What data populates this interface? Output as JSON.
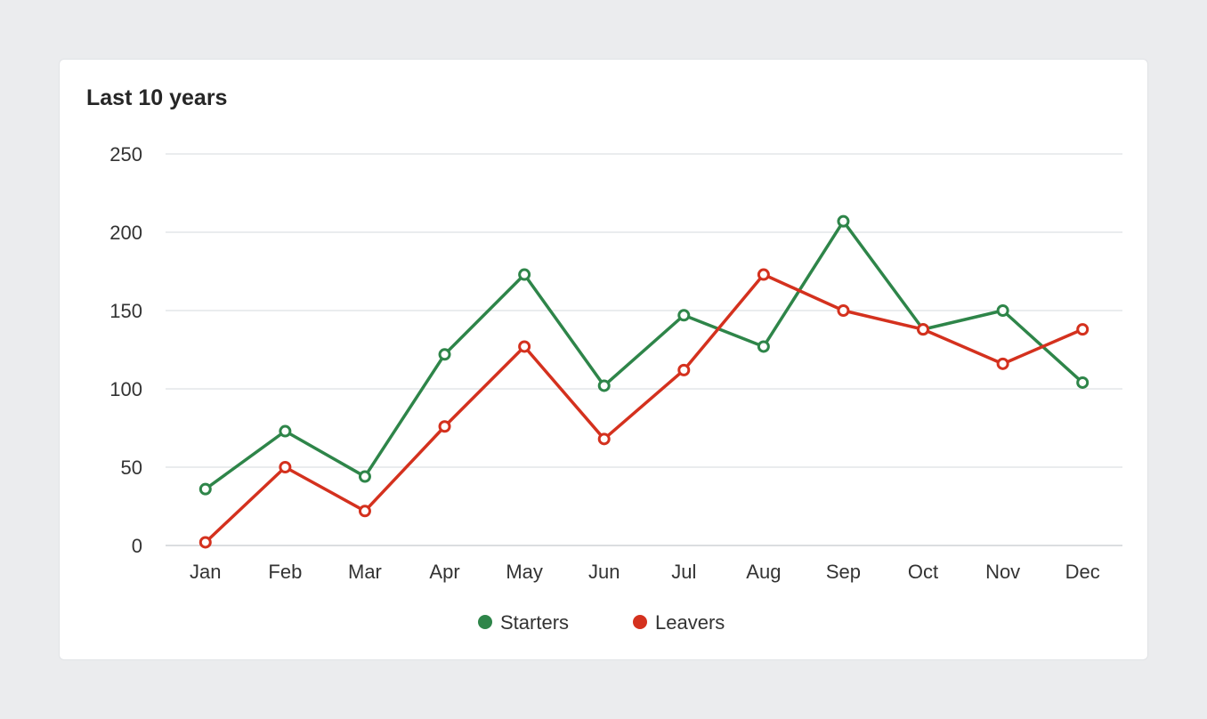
{
  "card": {
    "title": "Last 10 years"
  },
  "chart_data": {
    "type": "line",
    "title": "Last 10 years",
    "categories": [
      "Jan",
      "Feb",
      "Mar",
      "Apr",
      "May",
      "Jun",
      "Jul",
      "Aug",
      "Sep",
      "Oct",
      "Nov",
      "Dec"
    ],
    "series": [
      {
        "name": "Starters",
        "color": "#2e8549",
        "values": [
          36,
          73,
          44,
          122,
          173,
          102,
          147,
          127,
          207,
          138,
          150,
          104
        ]
      },
      {
        "name": "Leavers",
        "color": "#d4311e",
        "values": [
          2,
          50,
          22,
          76,
          127,
          68,
          112,
          173,
          150,
          138,
          116,
          138
        ]
      }
    ],
    "ylim": [
      0,
      250
    ],
    "yticks": [
      "0",
      "50",
      "100",
      "150",
      "200",
      "250"
    ],
    "grid": true,
    "legend_position": "bottom-center",
    "xlabel": "",
    "ylabel": ""
  }
}
